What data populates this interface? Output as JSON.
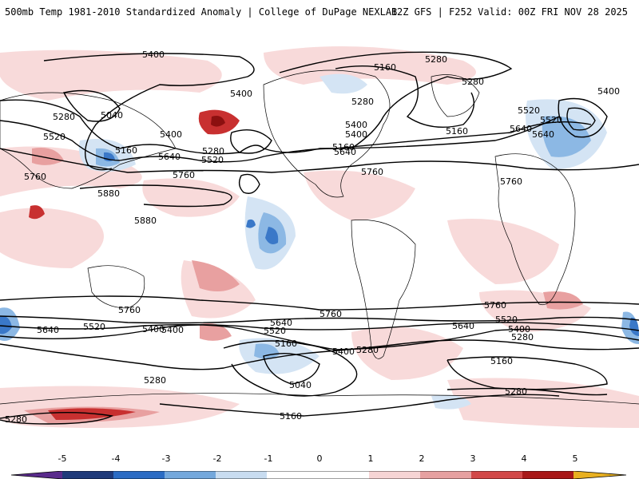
{
  "header": {
    "title": "500mb Temp 1981-2010 Standardized Anomaly | College of DuPage NEXLAB",
    "run_info": "12Z GFS | F252 Valid: 00Z FRI NOV 28 2025"
  },
  "map": {
    "contour_labels": [
      "5400",
      "5280",
      "5160",
      "5280",
      "5400",
      "5280",
      "5040",
      "5520",
      "5160",
      "5400",
      "5640",
      "5280",
      "5520",
      "5760",
      "5160",
      "5400",
      "5640",
      "5280",
      "5520",
      "5400",
      "5640",
      "5880",
      "5760",
      "5880",
      "5760",
      "5160",
      "5400",
      "5520",
      "5640",
      "5760",
      "5760",
      "5640",
      "5520",
      "5400",
      "5280",
      "5640",
      "5520",
      "5400",
      "5160",
      "5400",
      "5280",
      "5040",
      "5160",
      "5280",
      "5160",
      "5280",
      "5760",
      "5640",
      "5520",
      "5400",
      "5760",
      "5280"
    ]
  },
  "legend": {
    "ticks": [
      "-5",
      "-4",
      "-3",
      "-2",
      "-1",
      "0",
      "1",
      "2",
      "3",
      "4",
      "5"
    ],
    "colors": [
      "#5a2b8c",
      "#1f3a7a",
      "#2b6cc4",
      "#74a8dc",
      "#c8dcf0",
      "#ffffff",
      "#f6d4d4",
      "#e6a0a0",
      "#d24848",
      "#a81818",
      "#e8b020"
    ]
  },
  "colors": {
    "neg_strong": "#3a78c8",
    "neg_mid": "#8cb8e4",
    "neg_light": "#d4e4f4",
    "pos_light": "#f8dada",
    "pos_mid": "#e8a0a0",
    "pos_strong": "#c83030",
    "pos_extreme": "#8c1010"
  }
}
